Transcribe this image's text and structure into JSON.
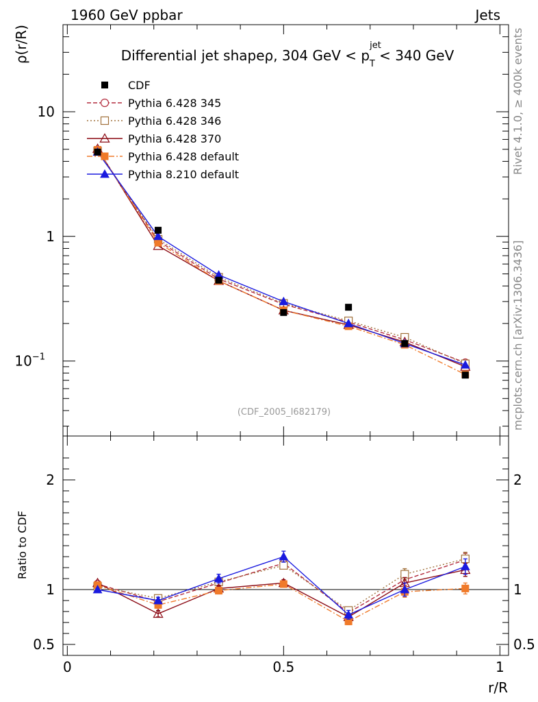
{
  "chart_data": {
    "type": "line",
    "header": {
      "left": "1960 GeV ppbar",
      "right": "Jets"
    },
    "title": {
      "main": "Differential jet shapeρ, 304 GeV < p",
      "sup": "jet",
      "sub": "T",
      "tail": " < 340 GeV"
    },
    "watermark": "(CDF_2005_I682179)",
    "side_texts": {
      "rivet": "Rivet 4.1.0, ≥ 400k events",
      "mcplots": "mcplots.cern.ch [arXiv:1306.3436]"
    },
    "xlabel": "r/R",
    "ylabel": "ρ(r/R)",
    "ratio_ylabel": "Ratio to CDF",
    "xlim": [
      -0.01,
      1.02
    ],
    "ylim": [
      0.025,
      50
    ],
    "ratio_ylim": [
      0.4,
      2.4
    ],
    "x_ticks": [
      {
        "v": 0,
        "label": "0"
      },
      {
        "v": 0.5,
        "label": "0.5"
      },
      {
        "v": 1,
        "label": "1"
      }
    ],
    "y_ticks": [
      {
        "v": 10,
        "label": "10"
      },
      {
        "v": 1,
        "label": "1"
      },
      {
        "v": 0.1,
        "label": "10",
        "sup": "−1"
      }
    ],
    "ratio_ticks": [
      {
        "v": 2,
        "label": "2"
      },
      {
        "v": 1,
        "label": "1"
      },
      {
        "v": 0.5,
        "label": "0.5"
      }
    ],
    "x": [
      0.07,
      0.21,
      0.35,
      0.5,
      0.65,
      0.78,
      0.92
    ],
    "data": {
      "name": "CDF",
      "values": [
        4.75,
        1.12,
        0.445,
        0.245,
        0.27,
        0.138,
        0.077
      ],
      "color": "#000000"
    },
    "series": [
      {
        "name": "Pythia 6.428 345",
        "color": "#b22a3c",
        "marker": "circle-open",
        "dash": "6,3",
        "values": [
          4.95,
          0.92,
          0.455,
          0.285,
          0.205,
          0.148,
          0.097
        ],
        "ratio": [
          1.05,
          0.89,
          1.06,
          1.24,
          0.79,
          1.09,
          1.27
        ],
        "ratio_err": [
          0,
          0.03,
          0.03,
          0.03,
          0.03,
          0.05,
          0.06
        ]
      },
      {
        "name": "Pythia 6.428 346",
        "color": "#a0703a",
        "marker": "square-open",
        "dash": "2,3",
        "values": [
          4.85,
          0.95,
          0.47,
          0.29,
          0.21,
          0.155,
          0.095
        ],
        "ratio": [
          1.03,
          0.92,
          1.07,
          1.22,
          0.81,
          1.14,
          1.28
        ],
        "ratio_err": [
          0,
          0.03,
          0.03,
          0.03,
          0.03,
          0.05,
          0.06
        ]
      },
      {
        "name": "Pythia 6.428 370",
        "color": "#8b0a14",
        "marker": "triangle-open",
        "dash": "",
        "values": [
          5.05,
          0.84,
          0.44,
          0.255,
          0.195,
          0.142,
          0.09
        ],
        "ratio": [
          1.06,
          0.78,
          1.01,
          1.06,
          0.75,
          1.06,
          1.18
        ],
        "ratio_err": [
          0,
          0.03,
          0.03,
          0.03,
          0.03,
          0.05,
          0.06
        ]
      },
      {
        "name": "Pythia 6.428 default",
        "color": "#f07a2a",
        "marker": "square",
        "dash": "8,3,2,3",
        "values": [
          4.95,
          0.89,
          0.44,
          0.255,
          0.19,
          0.135,
          0.078
        ],
        "ratio": [
          1.04,
          0.86,
          0.99,
          1.05,
          0.71,
          0.98,
          1.01
        ],
        "ratio_err": [
          0,
          0.03,
          0.03,
          0.03,
          0.03,
          0.05,
          0.05
        ]
      },
      {
        "name": "Pythia 8.210 default",
        "color": "#1a1adf",
        "marker": "triangle",
        "dash": "",
        "values": [
          4.75,
          1.0,
          0.49,
          0.3,
          0.2,
          0.138,
          0.093
        ],
        "ratio": [
          1.0,
          0.9,
          1.1,
          1.3,
          0.77,
          1.0,
          1.21
        ],
        "ratio_err": [
          0,
          0.03,
          0.04,
          0.05,
          0.04,
          0.06,
          0.07
        ]
      }
    ]
  }
}
